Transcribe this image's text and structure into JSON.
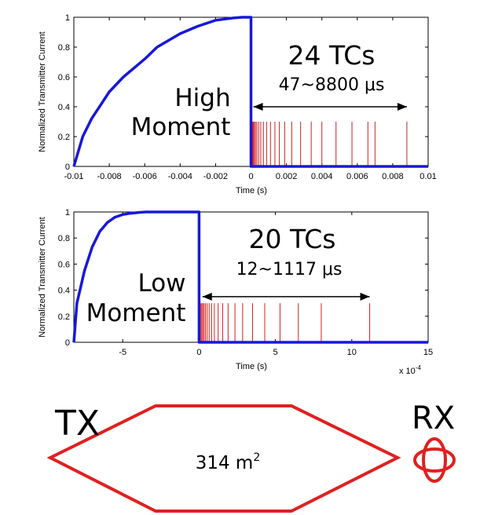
{
  "chart_data": [
    {
      "type": "line",
      "panel": "high-moment",
      "ylabel": "Normalized Transmitter Current",
      "xlabel": "Time (s)",
      "xlim": [
        -0.01,
        0.01
      ],
      "ylim": [
        0,
        1
      ],
      "xticks": [
        "-0.01",
        "-0.008",
        "-0.006",
        "-0.004",
        "-0.002",
        "0",
        "0.002",
        "0.004",
        "0.006",
        "0.008",
        "0.01"
      ],
      "yticks": [
        "0",
        "0.2",
        "0.4",
        "0.6",
        "0.8",
        "1"
      ],
      "current_color": "#1818d8",
      "gate_color": "#d42020",
      "current_waveform": {
        "x": [
          -0.01,
          -0.0095,
          -0.009,
          -0.008,
          -0.0072,
          -0.006,
          -0.0053,
          -0.004,
          -0.003,
          -0.002,
          -0.001,
          -0.0005,
          0,
          0,
          0.01
        ],
        "y": [
          0,
          0.2,
          0.32,
          0.5,
          0.6,
          0.72,
          0.8,
          0.89,
          0.94,
          0.98,
          0.995,
          1,
          1,
          0,
          0
        ]
      },
      "time_gates": {
        "height": 0.3,
        "x": [
          4.7e-05,
          7e-05,
          0.0001,
          0.00014,
          0.00019,
          0.00025,
          0.00033,
          0.00043,
          0.00055,
          0.0007,
          0.00088,
          0.0011,
          0.00135,
          0.0016,
          0.0019,
          0.0023,
          0.0028,
          0.0034,
          0.004,
          0.0048,
          0.0057,
          0.0066,
          0.007,
          0.0088
        ]
      },
      "annotation_count": "24 TCs",
      "annotation_range": "47~8800 μs",
      "annotation_range_x": [
        4.7e-05,
        0.0088
      ],
      "annotation_range_y": 0.4,
      "moment_line1": "High",
      "moment_line2": "Moment"
    },
    {
      "type": "line",
      "panel": "low-moment",
      "ylabel": "Normalized Transmitter Current",
      "xlabel": "Time (s)",
      "x_exponent": "x 10",
      "x_exponent_power": "-4",
      "xlim": [
        -8.2,
        15
      ],
      "ylim": [
        0,
        1
      ],
      "xticks": [
        "-5",
        "0",
        "5",
        "10",
        "15"
      ],
      "yticks": [
        "0",
        "0.2",
        "0.4",
        "0.6",
        "0.8",
        "1"
      ],
      "current_color": "#1818d8",
      "gate_color": "#d42020",
      "current_waveform": {
        "x": [
          -8.2,
          -8,
          -7.5,
          -7,
          -6.5,
          -6,
          -5.5,
          -5,
          -4.5,
          -4,
          -3.5,
          0,
          0,
          15
        ],
        "y": [
          0,
          0.3,
          0.55,
          0.73,
          0.85,
          0.92,
          0.96,
          0.98,
          0.99,
          0.995,
          1,
          1,
          0,
          0
        ]
      },
      "time_gates": {
        "height": 0.3,
        "x": [
          0.12,
          0.18,
          0.25,
          0.33,
          0.42,
          0.53,
          0.66,
          0.82,
          1.0,
          1.25,
          1.55,
          1.9,
          2.35,
          2.85,
          3.5,
          4.3,
          5.3,
          6.5,
          8.0,
          11.17
        ]
      },
      "annotation_count": "20 TCs",
      "annotation_range": "12~1117 μs",
      "annotation_range_x": [
        0.12,
        11.17
      ],
      "annotation_range_y": 0.35,
      "moment_line1": "Low",
      "moment_line2": "Moment"
    }
  ],
  "diagram": {
    "tx_label": "TX",
    "rx_label": "RX",
    "area_value": "314 m",
    "area_unit_power": "2",
    "color": "#e02020"
  }
}
